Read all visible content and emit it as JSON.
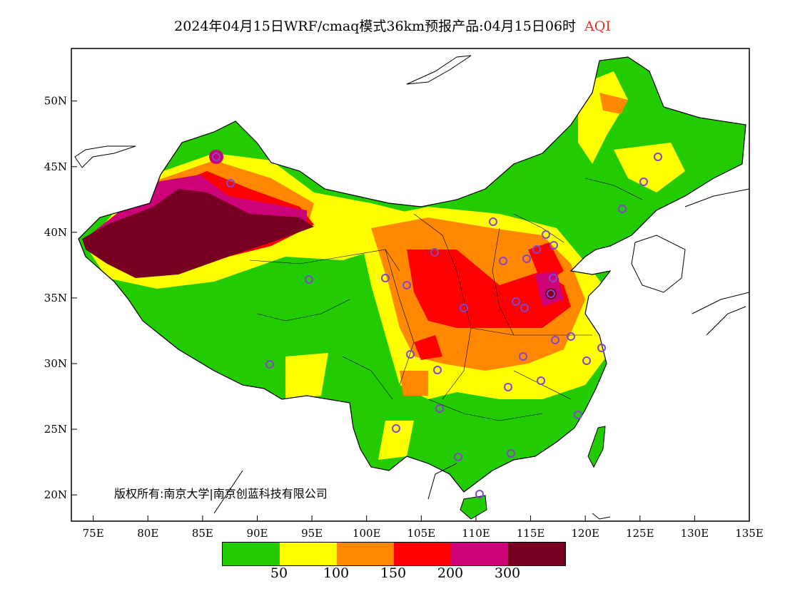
{
  "title": {
    "main": "2024年04月15日WRF/cmaq模式36km预报产品:04月15日06时",
    "variable": "AQI"
  },
  "copyright": "版权所有:南京大学|南京创蓝科技有限公司",
  "axes": {
    "lat_labels": [
      "50N",
      "45N",
      "40N",
      "35N",
      "30N",
      "25N",
      "20N"
    ],
    "lon_labels": [
      "75E",
      "80E",
      "85E",
      "90E",
      "95E",
      "100E",
      "105E",
      "110E",
      "115E",
      "120E",
      "125E",
      "130E",
      "135E"
    ],
    "lon_range": [
      73,
      135
    ],
    "lat_range": [
      18,
      54
    ]
  },
  "legend": {
    "colors": [
      "#22cc00",
      "#ffff00",
      "#ff8800",
      "#ff0000",
      "#cc0077",
      "#770022"
    ],
    "ticks": [
      "50",
      "100",
      "150",
      "200",
      "300"
    ]
  },
  "colors": {
    "good": "#22cc00",
    "moderate": "#ffff00",
    "sensitive": "#ff8800",
    "unhealthy": "#ff0000",
    "very_unhealthy": "#cc0077",
    "hazardous": "#770022",
    "station_marker": "#8844cc"
  }
}
